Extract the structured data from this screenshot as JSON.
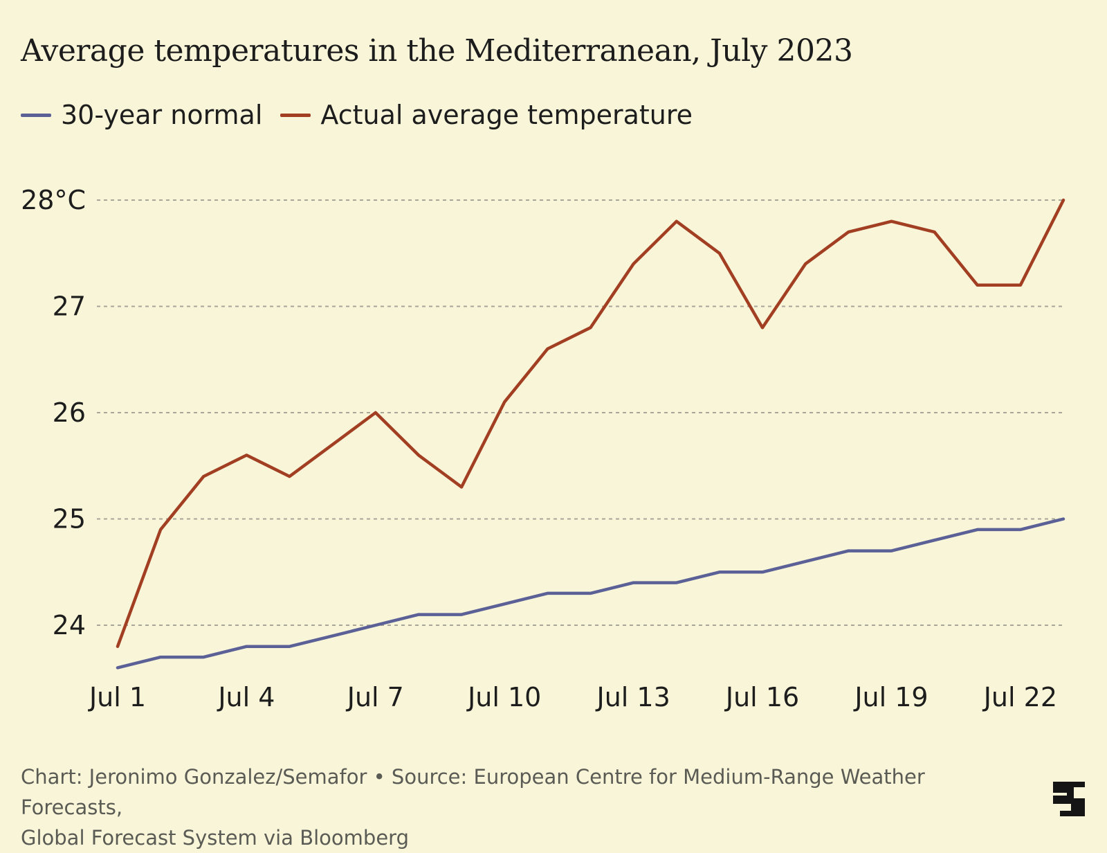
{
  "title": "Average temperatures in the Mediterranean, July 2023",
  "legend": [
    {
      "label": "30-year normal",
      "color": "#5b6196"
    },
    {
      "label": "Actual average temperature",
      "color": "#a23e22"
    }
  ],
  "source": {
    "line1": "Chart: Jeronimo Gonzalez/Semafor • Source: European Centre for Medium-Range Weather Forecasts,",
    "line2": "Global Forecast System via Bloomberg"
  },
  "colors": {
    "background": "#f8f5d8",
    "grid": "#a8a59a",
    "text": "#1d1d1d"
  },
  "chart_data": {
    "type": "line",
    "title": "Average temperatures in the Mediterranean, July 2023",
    "xlabel": "",
    "ylabel": "",
    "x": [
      "Jul 1",
      "Jul 2",
      "Jul 3",
      "Jul 4",
      "Jul 5",
      "Jul 6",
      "Jul 7",
      "Jul 8",
      "Jul 9",
      "Jul 10",
      "Jul 11",
      "Jul 12",
      "Jul 13",
      "Jul 14",
      "Jul 15",
      "Jul 16",
      "Jul 17",
      "Jul 18",
      "Jul 19",
      "Jul 20",
      "Jul 21",
      "Jul 22",
      "Jul 23"
    ],
    "x_ticks": [
      "Jul 1",
      "Jul 4",
      "Jul 7",
      "Jul 10",
      "Jul 13",
      "Jul 16",
      "Jul 19",
      "Jul 22"
    ],
    "y_ticks": [
      {
        "value": 24,
        "label": "24"
      },
      {
        "value": 25,
        "label": "25"
      },
      {
        "value": 26,
        "label": "26"
      },
      {
        "value": 27,
        "label": "27"
      },
      {
        "value": 28,
        "label": "28°C"
      }
    ],
    "ylim": [
      23.55,
      28.2
    ],
    "grid": true,
    "legend_position": "top-left",
    "series": [
      {
        "name": "30-year normal",
        "color": "#5b6196",
        "values": [
          23.6,
          23.7,
          23.7,
          23.8,
          23.8,
          23.9,
          24.0,
          24.1,
          24.1,
          24.2,
          24.3,
          24.3,
          24.4,
          24.4,
          24.5,
          24.5,
          24.6,
          24.7,
          24.7,
          24.8,
          24.9,
          24.9,
          25.0
        ]
      },
      {
        "name": "Actual average temperature",
        "color": "#a23e22",
        "values": [
          23.8,
          24.9,
          25.4,
          25.6,
          25.4,
          25.7,
          26.0,
          25.6,
          25.3,
          26.1,
          26.6,
          26.8,
          27.4,
          27.8,
          27.5,
          26.8,
          27.4,
          27.7,
          27.8,
          27.7,
          27.2,
          27.2,
          28.0
        ]
      }
    ]
  }
}
